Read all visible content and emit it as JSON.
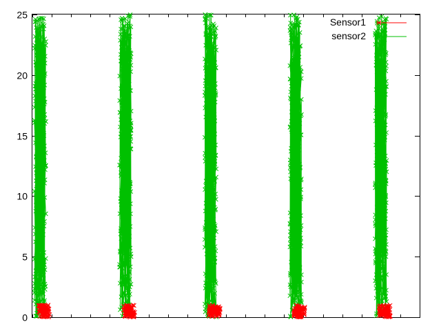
{
  "chart_data": {
    "type": "scatter",
    "title": "",
    "xlabel": "",
    "ylabel": "",
    "ylim": [
      0,
      25
    ],
    "yticks": [
      0,
      5,
      10,
      15,
      20,
      25
    ],
    "xlim": [
      0,
      100
    ],
    "grid": false,
    "legend_position": "top-right",
    "series": [
      {
        "name": "Sensor1",
        "color": "#ff0000",
        "style": "lines+x-points",
        "value_range": [
          0,
          1
        ],
        "bursts_x": [
          [
            1.5,
            4.5
          ],
          [
            23.5,
            26.5
          ],
          [
            45.5,
            48.5
          ],
          [
            67.5,
            70.5
          ],
          [
            89.5,
            92.5
          ]
        ]
      },
      {
        "name": "sensor2",
        "color": "#00c000",
        "style": "lines+x-points",
        "value_range": [
          0,
          25
        ],
        "bursts_x": [
          [
            0.5,
            3.5
          ],
          [
            22.5,
            25.5
          ],
          [
            44.5,
            47.5
          ],
          [
            66.5,
            69.5
          ],
          [
            88.5,
            91.5
          ]
        ]
      }
    ]
  }
}
